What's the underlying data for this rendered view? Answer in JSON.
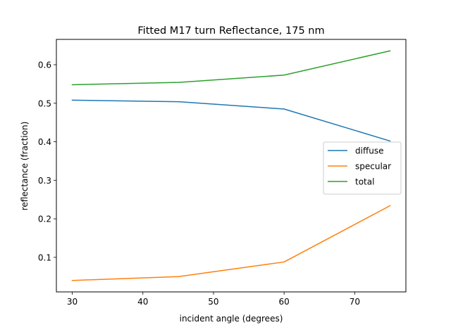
{
  "chart_data": {
    "type": "line",
    "title": "Fitted M17 turn Reflectance, 175 nm",
    "xlabel": "incident angle (degrees)",
    "ylabel": "reflectance (fraction)",
    "x": [
      30,
      45,
      60,
      75
    ],
    "xlim": [
      27.75,
      77.25
    ],
    "ylim": [
      0.0103,
      0.6657
    ],
    "xticks": [
      30,
      40,
      50,
      60,
      70
    ],
    "yticks": [
      0.1,
      0.2,
      0.3,
      0.4,
      0.5,
      0.6
    ],
    "grid": false,
    "legend_position": "center-right",
    "series": [
      {
        "name": "diffuse",
        "color": "#1f77b4",
        "values": [
          0.508,
          0.504,
          0.485,
          0.402
        ]
      },
      {
        "name": "specular",
        "color": "#ff7f0e",
        "values": [
          0.04,
          0.05,
          0.088,
          0.234
        ]
      },
      {
        "name": "total",
        "color": "#2ca02c",
        "values": [
          0.548,
          0.554,
          0.573,
          0.636
        ]
      }
    ]
  }
}
